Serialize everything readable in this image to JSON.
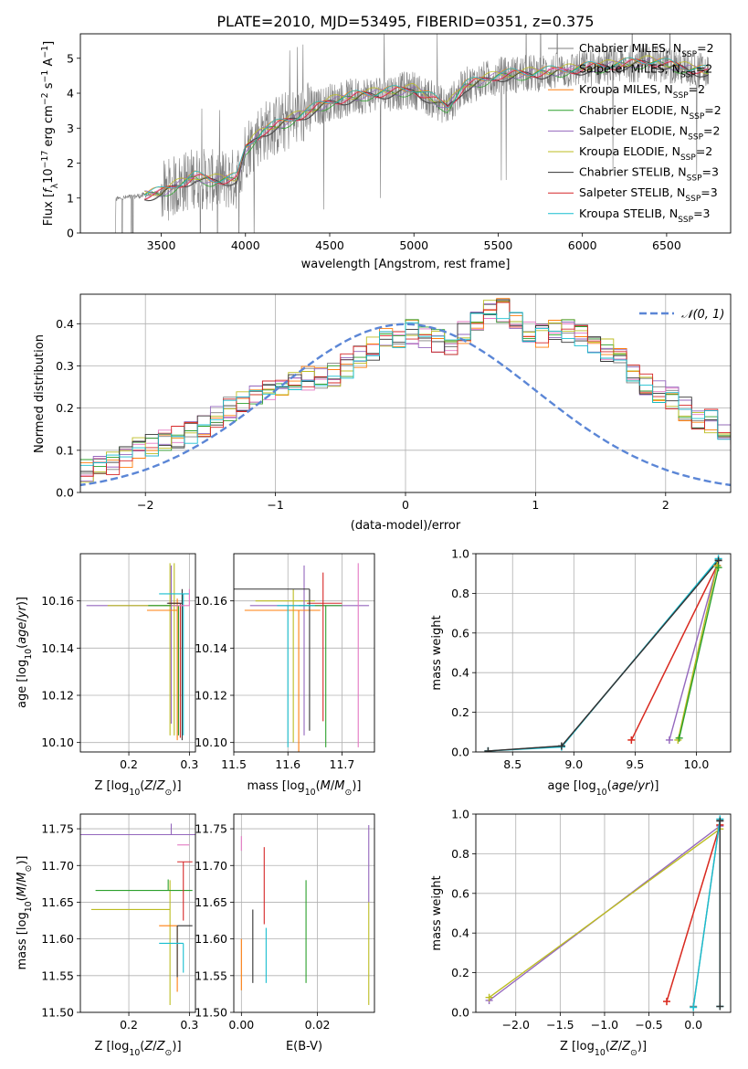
{
  "title": "PLATE=2010, MJD=53495, FIBERID=0351, z=0.375",
  "colors": {
    "chabrier_miles": "#808080",
    "salpeter_miles": "#e377c2",
    "kroupa_miles": "#ff7f0e",
    "chabrier_elodie": "#2ca02c",
    "salpeter_elodie": "#9467bd",
    "kroupa_elodie": "#bcbd22",
    "chabrier_stelib": "#333333",
    "salpeter_stelib": "#d62728",
    "kroupa_stelib": "#17becf",
    "normal": "#5b86d6",
    "grid": "#b0b0b0"
  },
  "legend_spectrum": [
    {
      "label": "Chabrier MILES, N",
      "sub": "SSP",
      "suffix": "=2",
      "color": "#808080"
    },
    {
      "label": "Salpeter MILES, N",
      "sub": "SSP",
      "suffix": "=2",
      "color": "#e377c2"
    },
    {
      "label": "Kroupa MILES, N",
      "sub": "SSP",
      "suffix": "=2",
      "color": "#ff7f0e"
    },
    {
      "label": "Chabrier ELODIE, N",
      "sub": "SSP",
      "suffix": "=2",
      "color": "#2ca02c"
    },
    {
      "label": "Salpeter ELODIE, N",
      "sub": "SSP",
      "suffix": "=2",
      "color": "#9467bd"
    },
    {
      "label": "Kroupa ELODIE, N",
      "sub": "SSP",
      "suffix": "=2",
      "color": "#bcbd22"
    },
    {
      "label": "Chabrier STELIB, N",
      "sub": "SSP",
      "suffix": "=3",
      "color": "#333333"
    },
    {
      "label": "Salpeter STELIB, N",
      "sub": "SSP",
      "suffix": "=3",
      "color": "#d62728"
    },
    {
      "label": "Kroupa STELIB, N",
      "sub": "SSP",
      "suffix": "=3",
      "color": "#17becf"
    }
  ],
  "legend_hist": {
    "label": "𝒩(0, 1)"
  },
  "chart_data": [
    {
      "id": "spectrum",
      "type": "line",
      "xlabel": "wavelength [Angstrom, rest frame]",
      "ylabel": "Flux [f_λ 10^-17 erg cm^-2 s^-1 A^-1]",
      "xlim": [
        3020,
        6880
      ],
      "ylim": [
        0,
        5.7
      ],
      "xticks": [
        3500,
        4000,
        4500,
        5000,
        5500,
        6000,
        6500
      ],
      "yticks": [
        0,
        1,
        2,
        3,
        4,
        5
      ],
      "grid": false,
      "legend": "right",
      "data_range": [
        3200,
        6750
      ],
      "continuum": {
        "x": [
          3200,
          3500,
          3700,
          3800,
          3950,
          4000,
          4100,
          4300,
          4500,
          4700,
          5000,
          5200,
          5300,
          5500,
          5800,
          6100,
          6400,
          6750
        ],
        "y": [
          0.95,
          1.15,
          1.6,
          1.5,
          1.55,
          2.4,
          2.9,
          3.3,
          3.75,
          3.95,
          4.1,
          3.6,
          4.2,
          4.5,
          4.6,
          4.75,
          4.9,
          4.6
        ]
      }
    },
    {
      "id": "residual_hist",
      "type": "line",
      "xlabel": "(data-model)/error",
      "ylabel": "Normed distribution",
      "xlim": [
        -2.5,
        2.5
      ],
      "ylim": [
        0,
        0.47
      ],
      "xticks": [
        -2,
        -1,
        0,
        1,
        2
      ],
      "yticks": [
        0.0,
        0.1,
        0.2,
        0.3,
        0.4
      ],
      "grid": true,
      "legend": "top-right",
      "bin_width": 0.1,
      "hist_base": [
        0.02,
        0.02,
        0.03,
        0.03,
        0.04,
        0.05,
        0.06,
        0.07,
        0.08,
        0.1,
        0.11,
        0.12,
        0.13,
        0.14,
        0.16,
        0.18,
        0.2,
        0.21,
        0.23,
        0.24,
        0.25,
        0.26,
        0.27,
        0.27,
        0.28,
        0.3,
        0.32,
        0.34,
        0.36,
        0.37,
        0.38,
        0.37,
        0.36,
        0.35,
        0.38,
        0.41,
        0.44,
        0.43,
        0.4,
        0.38,
        0.37,
        0.39,
        0.38,
        0.37,
        0.35,
        0.34,
        0.32,
        0.29,
        0.26,
        0.24,
        0.22,
        0.2,
        0.18,
        0.17,
        0.15,
        0.14,
        0.12,
        0.11,
        0.1,
        0.09,
        0.08,
        0.07,
        0.07,
        0.06,
        0.06,
        0.05
      ],
      "hist_xstart": -3.0
    },
    {
      "id": "age_vs_Z",
      "type": "scatter",
      "xlabel": "Z [log10(Z/Z⊙)]",
      "ylabel": "age  [log10(age/yr)]",
      "xlim": [
        0.12,
        0.31
      ],
      "ylim": [
        10.096,
        10.18
      ],
      "xticks": [
        0.2,
        0.3
      ],
      "yticks": [
        10.1,
        10.12,
        10.14,
        10.16
      ],
      "grid": true,
      "points": [
        {
          "x": 0.268,
          "y": 10.158,
          "xerr": [
            0.01,
            0.0
          ],
          "yerr": [
            0.055,
            0.018
          ],
          "series": "kroupa_elodie"
        },
        {
          "x": 0.27,
          "y": 10.158,
          "xerr": [
            0.14,
            0.0
          ],
          "yerr": [
            0.05,
            0.017
          ],
          "series": "salpeter_elodie"
        },
        {
          "x": 0.275,
          "y": 10.158,
          "xerr": [
            0.11,
            0.0
          ],
          "yerr": [
            0.055,
            0.018
          ],
          "series": "kroupa_elodie"
        },
        {
          "x": 0.28,
          "y": 10.156,
          "xerr": [
            0.05,
            0.0
          ],
          "yerr": [
            0.055,
            0.005
          ],
          "series": "kroupa_miles"
        },
        {
          "x": 0.282,
          "y": 10.158,
          "xerr": [
            0.05,
            0.0
          ],
          "yerr": [
            0.055,
            0.0
          ],
          "series": "chabrier_elodie"
        },
        {
          "x": 0.285,
          "y": 10.159,
          "xerr": [
            0.02,
            0.0
          ],
          "yerr": [
            0.057,
            0.0
          ],
          "series": "salpeter_stelib"
        },
        {
          "x": 0.288,
          "y": 10.159,
          "xerr": [
            0.025,
            0.0
          ],
          "yerr": [
            0.058,
            0.006
          ],
          "series": "chabrier_stelib"
        },
        {
          "x": 0.29,
          "y": 10.163,
          "xerr": [
            0.04,
            0.01
          ],
          "yerr": [
            0.06,
            0.0
          ],
          "series": "kroupa_stelib"
        },
        {
          "x": 0.3,
          "y": 10.158,
          "xerr": [
            0.03,
            0.0
          ],
          "yerr": [
            0.0,
            0.007
          ],
          "series": "salpeter_miles"
        }
      ]
    },
    {
      "id": "age_vs_mass",
      "type": "scatter",
      "xlabel": "mass [log10(M/M⊙)]",
      "ylabel": "",
      "xlim": [
        11.5,
        11.76
      ],
      "ylim": [
        10.096,
        10.18
      ],
      "xticks": [
        11.5,
        11.6,
        11.7
      ],
      "yticks": [
        10.1,
        10.12,
        10.14,
        10.16
      ],
      "grid": true,
      "points": [
        {
          "x": 11.61,
          "y": 10.16,
          "xerr": [
            0.07,
            0.04
          ],
          "yerr": [
            0.06,
            0.005
          ],
          "series": "kroupa_elodie"
        },
        {
          "x": 11.63,
          "y": 10.158,
          "xerr": [
            0.1,
            0.12
          ],
          "yerr": [
            0.055,
            0.017
          ],
          "series": "salpeter_elodie"
        },
        {
          "x": 11.62,
          "y": 10.156,
          "xerr": [
            0.1,
            0.04
          ],
          "yerr": [
            0.06,
            0.0
          ],
          "series": "kroupa_miles"
        },
        {
          "x": 11.67,
          "y": 10.158,
          "xerr": [
            0.05,
            0.03
          ],
          "yerr": [
            0.06,
            0.0
          ],
          "series": "chabrier_elodie"
        },
        {
          "x": 11.665,
          "y": 10.159,
          "xerr": [
            0.03,
            0.035
          ],
          "yerr": [
            0.05,
            0.013
          ],
          "series": "salpeter_stelib"
        },
        {
          "x": 11.64,
          "y": 10.165,
          "xerr": [
            0.14,
            0.0
          ],
          "yerr": [
            0.06,
            0.0
          ],
          "series": "chabrier_stelib"
        },
        {
          "x": 11.6,
          "y": 10.158,
          "xerr": [
            0.02,
            0.05
          ],
          "yerr": [
            0.06,
            0.0
          ],
          "series": "kroupa_stelib"
        },
        {
          "x": 11.73,
          "y": 10.158,
          "xerr": [
            0.0,
            0.0
          ],
          "yerr": [
            0.06,
            0.018
          ],
          "series": "salpeter_miles"
        }
      ]
    },
    {
      "id": "mass_weight_vs_age",
      "type": "line",
      "xlabel": "age  [log10(age/yr)]",
      "ylabel": "mass weight",
      "xlim": [
        8.2,
        10.28
      ],
      "ylim": [
        0,
        1
      ],
      "xticks": [
        8.5,
        9.0,
        9.5,
        10.0
      ],
      "yticks": [
        0.0,
        0.2,
        0.4,
        0.6,
        0.8,
        1.0
      ],
      "grid": true,
      "series": [
        {
          "series": "chabrier_miles",
          "x": [
            8.3,
            8.9,
            10.18
          ],
          "y": [
            0.005,
            0.03,
            0.97
          ]
        },
        {
          "series": "kroupa_stelib",
          "x": [
            8.3,
            8.9,
            10.18
          ],
          "y": [
            0.005,
            0.025,
            0.975
          ]
        },
        {
          "series": "chabrier_stelib",
          "x": [
            8.3,
            8.9,
            10.18
          ],
          "y": [
            0.005,
            0.03,
            0.965
          ]
        },
        {
          "series": "kroupa_miles",
          "x": [
            9.47,
            10.17
          ],
          "y": [
            0.06,
            0.94
          ]
        },
        {
          "series": "salpeter_stelib",
          "x": [
            9.47,
            10.17
          ],
          "y": [
            0.06,
            0.94
          ]
        },
        {
          "series": "salpeter_elodie",
          "x": [
            9.78,
            10.17
          ],
          "y": [
            0.06,
            0.94
          ]
        },
        {
          "series": "kroupa_elodie",
          "x": [
            9.85,
            10.17
          ],
          "y": [
            0.06,
            0.94
          ]
        },
        {
          "series": "chabrier_elodie",
          "x": [
            9.86,
            10.18
          ],
          "y": [
            0.07,
            0.93
          ]
        }
      ]
    },
    {
      "id": "mass_vs_Z",
      "type": "scatter",
      "xlabel": "Z [log10(Z/Z⊙)]",
      "ylabel": "mass [log10(M/M⊙)]",
      "xlim": [
        0.12,
        0.31
      ],
      "ylim": [
        11.5,
        11.77
      ],
      "xticks": [
        0.2,
        0.3
      ],
      "yticks": [
        11.5,
        11.55,
        11.6,
        11.65,
        11.7,
        11.75
      ],
      "grid": true,
      "points": [
        {
          "x": 0.268,
          "y": 11.64,
          "xerr": [
            0.13,
            0.0
          ],
          "yerr": [
            0.13,
            0.04
          ],
          "series": "kroupa_elodie"
        },
        {
          "x": 0.27,
          "y": 11.742,
          "xerr": [
            0.17,
            0.04
          ],
          "yerr": [
            0.0,
            0.015
          ],
          "series": "salpeter_elodie"
        },
        {
          "x": 0.28,
          "y": 11.618,
          "xerr": [
            0.03,
            0.0
          ],
          "yerr": [
            0.09,
            0.0
          ],
          "series": "kroupa_miles"
        },
        {
          "x": 0.265,
          "y": 11.666,
          "xerr": [
            0.12,
            0.04
          ],
          "yerr": [
            0.0,
            0.015
          ],
          "series": "chabrier_elodie"
        },
        {
          "x": 0.29,
          "y": 11.705,
          "xerr": [
            0.01,
            0.015
          ],
          "yerr": [
            0.08,
            0.0
          ],
          "series": "salpeter_stelib"
        },
        {
          "x": 0.28,
          "y": 11.618,
          "xerr": [
            0.0,
            0.025
          ],
          "yerr": [
            0.07,
            0.0
          ],
          "series": "chabrier_stelib"
        },
        {
          "x": 0.29,
          "y": 11.594,
          "xerr": [
            0.04,
            0.0
          ],
          "yerr": [
            0.04,
            0.0
          ],
          "series": "kroupa_stelib"
        },
        {
          "x": 0.3,
          "y": 11.728,
          "xerr": [
            0.02,
            0.0
          ],
          "yerr": [
            0.0,
            0.0
          ],
          "series": "salpeter_miles"
        }
      ]
    },
    {
      "id": "mass_vs_ebv",
      "type": "scatter",
      "xlabel": "E(B-V)",
      "ylabel": "",
      "xlim": [
        -0.002,
        0.035
      ],
      "ylim": [
        11.5,
        11.77
      ],
      "xticks": [
        0.0,
        0.02
      ],
      "yticks": [
        11.5,
        11.55,
        11.6,
        11.65,
        11.7,
        11.75
      ],
      "grid": true,
      "points": [
        {
          "x": 0.0,
          "y": 11.72,
          "yerr": [
            0.0,
            0.02
          ],
          "series": "salpeter_miles"
        },
        {
          "x": 0.0,
          "y": 11.6,
          "yerr": [
            0.07,
            0.0
          ],
          "series": "kroupa_miles"
        },
        {
          "x": 0.003,
          "y": 11.6,
          "yerr": [
            0.06,
            0.04
          ],
          "series": "chabrier_stelib"
        },
        {
          "x": 0.006,
          "y": 11.67,
          "yerr": [
            0.05,
            0.055
          ],
          "series": "salpeter_stelib"
        },
        {
          "x": 0.0065,
          "y": 11.585,
          "yerr": [
            0.045,
            0.03
          ],
          "series": "kroupa_stelib"
        },
        {
          "x": 0.017,
          "y": 11.61,
          "yerr": [
            0.07,
            0.07
          ],
          "series": "chabrier_elodie"
        },
        {
          "x": 0.0335,
          "y": 11.7,
          "yerr": [
            0.05,
            0.055
          ],
          "series": "salpeter_elodie"
        },
        {
          "x": 0.0335,
          "y": 11.58,
          "yerr": [
            0.07,
            0.07
          ],
          "series": "kroupa_elodie"
        }
      ]
    },
    {
      "id": "mass_weight_vs_Z",
      "type": "line",
      "xlabel": "Z [log10(Z/Z⊙)]",
      "ylabel": "mass weight",
      "xlim": [
        -2.45,
        0.42
      ],
      "ylim": [
        0,
        1
      ],
      "xticks": [
        -2.0,
        -1.5,
        -1.0,
        -0.5,
        0.0
      ],
      "yticks": [
        0.0,
        0.2,
        0.4,
        0.6,
        0.8,
        1.0
      ],
      "grid": true,
      "series": [
        {
          "series": "salpeter_elodie",
          "x": [
            -2.3,
            0.3
          ],
          "y": [
            0.06,
            0.94
          ]
        },
        {
          "series": "kroupa_elodie",
          "x": [
            -2.3,
            0.3
          ],
          "y": [
            0.075,
            0.925
          ]
        },
        {
          "series": "kroupa_miles",
          "x": [
            -0.3,
            0.3
          ],
          "y": [
            0.055,
            0.945
          ]
        },
        {
          "series": "salpeter_stelib",
          "x": [
            -0.3,
            0.3
          ],
          "y": [
            0.055,
            0.945
          ]
        },
        {
          "series": "chabrier_miles",
          "x": [
            0.0,
            0.3
          ],
          "y": [
            0.03,
            0.97
          ]
        },
        {
          "series": "kroupa_stelib",
          "x": [
            0.0,
            0.3,
            0.3
          ],
          "y": [
            0.025,
            0.975,
            0.03
          ]
        },
        {
          "series": "chabrier_stelib",
          "x": [
            0.3,
            0.3
          ],
          "y": [
            0.03,
            0.965
          ]
        }
      ]
    }
  ],
  "axis_labels": {
    "spec_ylabel_prefix": "Flux [",
    "spec_xlabel": "wavelength [Angstrom, rest frame]",
    "hist_xlabel": "(data-model)/error",
    "hist_ylabel": "Normed distribution",
    "z_label": "Z [log",
    "age_label": "age  [log",
    "mass_label": "mass [log",
    "ebv_label": "E(B-V)",
    "mw_label": "mass weight"
  }
}
